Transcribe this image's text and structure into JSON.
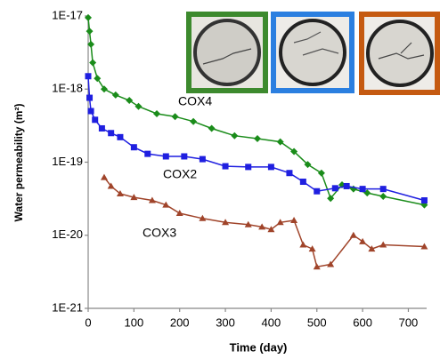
{
  "chart_data": {
    "type": "line",
    "x_label": "Time (day)",
    "y_label": "Water permeability  (m²)",
    "log_scale_y": true,
    "grid": false,
    "xlim": [
      0,
      740
    ],
    "xticks": [
      0,
      100,
      200,
      300,
      400,
      500,
      600,
      700
    ],
    "ylim": [
      1e-21,
      1e-17
    ],
    "yticks": [
      {
        "value": 1e-21,
        "label": "1E-21"
      },
      {
        "value": 1e-20,
        "label": "1E-20"
      },
      {
        "value": 1e-19,
        "label": "1E-19"
      },
      {
        "value": 1e-18,
        "label": "1E-18"
      },
      {
        "value": 1e-17,
        "label": "1E-17"
      }
    ],
    "series": [
      {
        "name": "COX4",
        "color": "#1a8c1a",
        "marker": "diamond",
        "x": [
          0,
          3,
          6,
          10,
          20,
          35,
          60,
          90,
          110,
          150,
          190,
          230,
          270,
          320,
          370,
          420,
          450,
          480,
          510,
          530,
          555,
          580,
          610,
          645,
          735
        ],
        "values": [
          9.5e-18,
          6.2e-18,
          4.1e-18,
          2.3e-18,
          1.4e-18,
          1e-18,
          8.3e-19,
          7e-19,
          5.8e-19,
          4.6e-19,
          4.2e-19,
          3.6e-19,
          2.9e-19,
          2.3e-19,
          2.1e-19,
          1.9e-19,
          1.4e-19,
          9.3e-20,
          7.1e-20,
          3.2e-20,
          4.9e-20,
          4.3e-20,
          3.8e-20,
          3.4e-20,
          2.6e-20
        ]
      },
      {
        "name": "COX2",
        "color": "#1f1fe0",
        "marker": "square",
        "x": [
          0,
          3,
          6,
          15,
          30,
          50,
          70,
          100,
          130,
          170,
          210,
          250,
          300,
          350,
          400,
          440,
          470,
          500,
          540,
          565,
          600,
          645,
          735
        ],
        "values": [
          1.5e-18,
          7.6e-19,
          5e-19,
          3.8e-19,
          2.9e-19,
          2.5e-19,
          2.2e-19,
          1.6e-19,
          1.3e-19,
          1.2e-19,
          1.2e-19,
          1.1e-19,
          8.8e-20,
          8.6e-20,
          8.6e-20,
          7.1e-20,
          5.4e-20,
          4e-20,
          4.4e-20,
          4.7e-20,
          4.3e-20,
          4.3e-20,
          3e-20
        ]
      },
      {
        "name": "COX3",
        "color": "#a0442a",
        "marker": "triangle",
        "x": [
          35,
          50,
          70,
          100,
          140,
          170,
          200,
          250,
          300,
          350,
          380,
          400,
          420,
          450,
          470,
          490,
          500,
          530,
          580,
          600,
          620,
          645,
          735
        ],
        "values": [
          6.2e-20,
          4.7e-20,
          3.7e-20,
          3.3e-20,
          3e-20,
          2.6e-20,
          2e-20,
          1.7e-20,
          1.5e-20,
          1.4e-20,
          1.3e-20,
          1.2e-20,
          1.5e-20,
          1.6e-20,
          7.4e-21,
          6.5e-21,
          3.7e-21,
          4e-21,
          1e-20,
          8.2e-21,
          6.5e-21,
          7.4e-21,
          7e-21
        ]
      }
    ]
  }
}
